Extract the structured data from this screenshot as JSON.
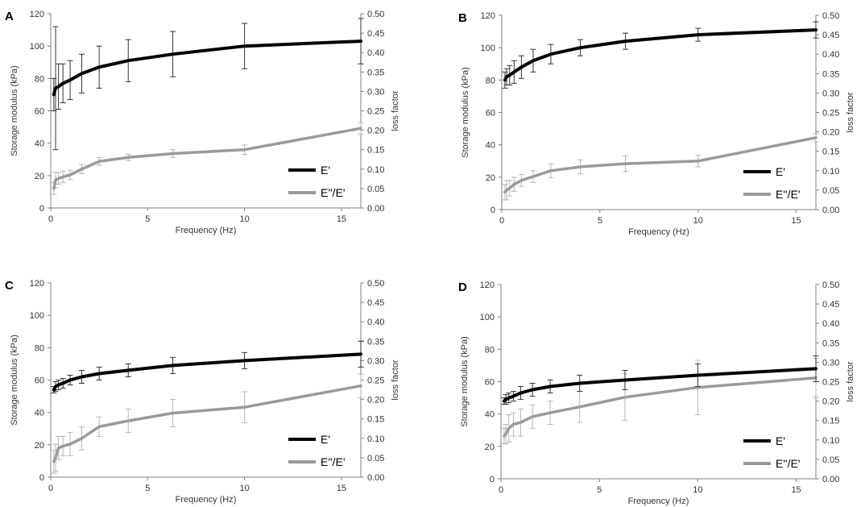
{
  "chart_data": [
    {
      "type": "line",
      "panel_label": "A",
      "xlabel": "Frequency (Hz)",
      "ylabel": "Storage modulus (kPa)",
      "y2label": "loss factor",
      "xlim": [
        0,
        16
      ],
      "xticks": [
        "0",
        "5",
        "10",
        "15"
      ],
      "ylim": [
        0,
        120
      ],
      "yticks": [
        "0",
        "20",
        "40",
        "60",
        "80",
        "100",
        "120"
      ],
      "y2lim": [
        0,
        0.5
      ],
      "y2ticks": [
        "0.00",
        "0.05",
        "0.10",
        "0.15",
        "0.20",
        "0.25",
        "0.30",
        "0.35",
        "0.40",
        "0.45",
        "0.50"
      ],
      "legend_position": "bottom-right",
      "series": [
        {
          "name": "E'",
          "axis": "left",
          "color": "#000000",
          "x": [
            0.16,
            0.25,
            0.4,
            0.63,
            1.0,
            1.6,
            2.5,
            4.0,
            6.3,
            10.0,
            16.0
          ],
          "y": [
            70,
            74,
            75,
            77,
            79,
            83,
            87,
            91,
            95,
            100,
            103
          ],
          "err": [
            10,
            38,
            14,
            12,
            12,
            12,
            13,
            13,
            14,
            14,
            14
          ]
        },
        {
          "name": "E''/E'",
          "axis": "right",
          "color": "#9a9a9a",
          "x": [
            0.16,
            0.25,
            0.4,
            0.63,
            1.0,
            1.6,
            2.5,
            4.0,
            6.3,
            10.0,
            16.0
          ],
          "y": [
            0.05,
            0.072,
            0.076,
            0.08,
            0.085,
            0.1,
            0.12,
            0.13,
            0.14,
            0.15,
            0.205
          ],
          "err": [
            0.015,
            0.02,
            0.015,
            0.015,
            0.012,
            0.012,
            0.01,
            0.008,
            0.01,
            0.012,
            0.015
          ]
        }
      ]
    },
    {
      "type": "line",
      "panel_label": "B",
      "xlabel": "Frequency (Hz)",
      "ylabel": "Storage modulus (kPa)",
      "y2label": "loss factor",
      "xlim": [
        0,
        16
      ],
      "xticks": [
        "0",
        "5",
        "10",
        "15"
      ],
      "ylim": [
        0,
        120
      ],
      "yticks": [
        "0",
        "20",
        "40",
        "60",
        "80",
        "100",
        "120"
      ],
      "y2lim": [
        0,
        0.5
      ],
      "y2ticks": [
        "0.00",
        "0.05",
        "0.10",
        "0.15",
        "0.20",
        "0.25",
        "0.30",
        "0.35",
        "0.40",
        "0.45",
        "0.50"
      ],
      "legend_position": "bottom-right",
      "series": [
        {
          "name": "E'",
          "axis": "left",
          "color": "#000000",
          "x": [
            0.16,
            0.25,
            0.4,
            0.63,
            1.0,
            1.6,
            2.5,
            4.0,
            6.3,
            10.0,
            16.0
          ],
          "y": [
            80,
            82,
            83,
            85,
            88,
            92,
            96,
            100,
            104,
            108,
            111
          ],
          "err": [
            5,
            5,
            6,
            7,
            7,
            7,
            6,
            5,
            5,
            4,
            5
          ]
        },
        {
          "name": "E''/E'",
          "axis": "right",
          "color": "#9a9a9a",
          "x": [
            0.16,
            0.25,
            0.4,
            0.63,
            1.0,
            1.6,
            2.5,
            4.0,
            6.3,
            10.0,
            16.0
          ],
          "y": [
            0.045,
            0.05,
            0.055,
            0.065,
            0.075,
            0.085,
            0.1,
            0.11,
            0.118,
            0.125,
            0.185
          ],
          "err": [
            0.02,
            0.025,
            0.02,
            0.018,
            0.015,
            0.015,
            0.018,
            0.018,
            0.02,
            0.015,
            0.01
          ]
        }
      ]
    },
    {
      "type": "line",
      "panel_label": "C",
      "xlabel": "Frequency (Hz)",
      "ylabel": "Storage modulus (kPa)",
      "y2label": "loss factor",
      "xlim": [
        0,
        16
      ],
      "xticks": [
        "0",
        "5",
        "10",
        "15"
      ],
      "ylim": [
        0,
        120
      ],
      "yticks": [
        "0",
        "20",
        "40",
        "60",
        "80",
        "100",
        "120"
      ],
      "y2lim": [
        0,
        0.5
      ],
      "y2ticks": [
        "0.00",
        "0.05",
        "0.10",
        "0.15",
        "0.20",
        "0.25",
        "0.30",
        "0.35",
        "0.40",
        "0.45",
        "0.50"
      ],
      "legend_position": "bottom-right",
      "series": [
        {
          "name": "E'",
          "axis": "left",
          "color": "#000000",
          "x": [
            0.16,
            0.25,
            0.4,
            0.63,
            1.0,
            1.6,
            2.5,
            4.0,
            6.3,
            10.0,
            16.0
          ],
          "y": [
            54,
            56,
            57,
            58,
            60,
            62,
            64,
            66,
            69,
            72,
            76
          ],
          "err": [
            2,
            3,
            3,
            3,
            3,
            4,
            4,
            4,
            5,
            5,
            8
          ]
        },
        {
          "name": "E''/E'",
          "axis": "right",
          "color": "#9a9a9a",
          "x": [
            0.16,
            0.25,
            0.4,
            0.63,
            1.0,
            1.6,
            2.5,
            4.0,
            6.3,
            10.0,
            16.0
          ],
          "y": [
            0.04,
            0.05,
            0.075,
            0.08,
            0.085,
            0.1,
            0.13,
            0.145,
            0.165,
            0.18,
            0.235
          ],
          "err": [
            0.03,
            0.035,
            0.03,
            0.025,
            0.03,
            0.03,
            0.025,
            0.03,
            0.035,
            0.04,
            0.03
          ]
        }
      ]
    },
    {
      "type": "line",
      "panel_label": "D",
      "xlabel": "Frequency (Hz)",
      "ylabel": "Storage modulus (kPa)",
      "y2label": "loss factor",
      "xlim": [
        0,
        16
      ],
      "xticks": [
        "0",
        "5",
        "10",
        "15"
      ],
      "ylim": [
        0,
        120
      ],
      "yticks": [
        "0",
        "20",
        "40",
        "60",
        "80",
        "100",
        "120"
      ],
      "y2lim": [
        0,
        0.5
      ],
      "y2ticks": [
        "0.00",
        "0.05",
        "0.10",
        "0.15",
        "0.20",
        "0.25",
        "0.30",
        "0.35",
        "0.40",
        "0.45",
        "0.50"
      ],
      "legend_position": "bottom-right",
      "series": [
        {
          "name": "E'",
          "axis": "left",
          "color": "#000000",
          "x": [
            0.16,
            0.25,
            0.4,
            0.63,
            1.0,
            1.6,
            2.5,
            4.0,
            6.3,
            10.0,
            16.0
          ],
          "y": [
            48,
            49,
            50,
            51,
            53,
            55,
            57,
            59,
            61,
            64,
            68
          ],
          "err": [
            2,
            3,
            3,
            3,
            4,
            4,
            4,
            5,
            6,
            7,
            8
          ]
        },
        {
          "name": "E''/E'",
          "axis": "right",
          "color": "#9a9a9a",
          "x": [
            0.16,
            0.25,
            0.4,
            0.63,
            1.0,
            1.6,
            2.5,
            4.0,
            6.3,
            10.0,
            16.0
          ],
          "y": [
            0.11,
            0.115,
            0.13,
            0.14,
            0.145,
            0.16,
            0.17,
            0.185,
            0.21,
            0.235,
            0.26
          ],
          "err": [
            0.02,
            0.025,
            0.035,
            0.03,
            0.035,
            0.03,
            0.03,
            0.04,
            0.06,
            0.07,
            0.05
          ]
        }
      ]
    }
  ]
}
